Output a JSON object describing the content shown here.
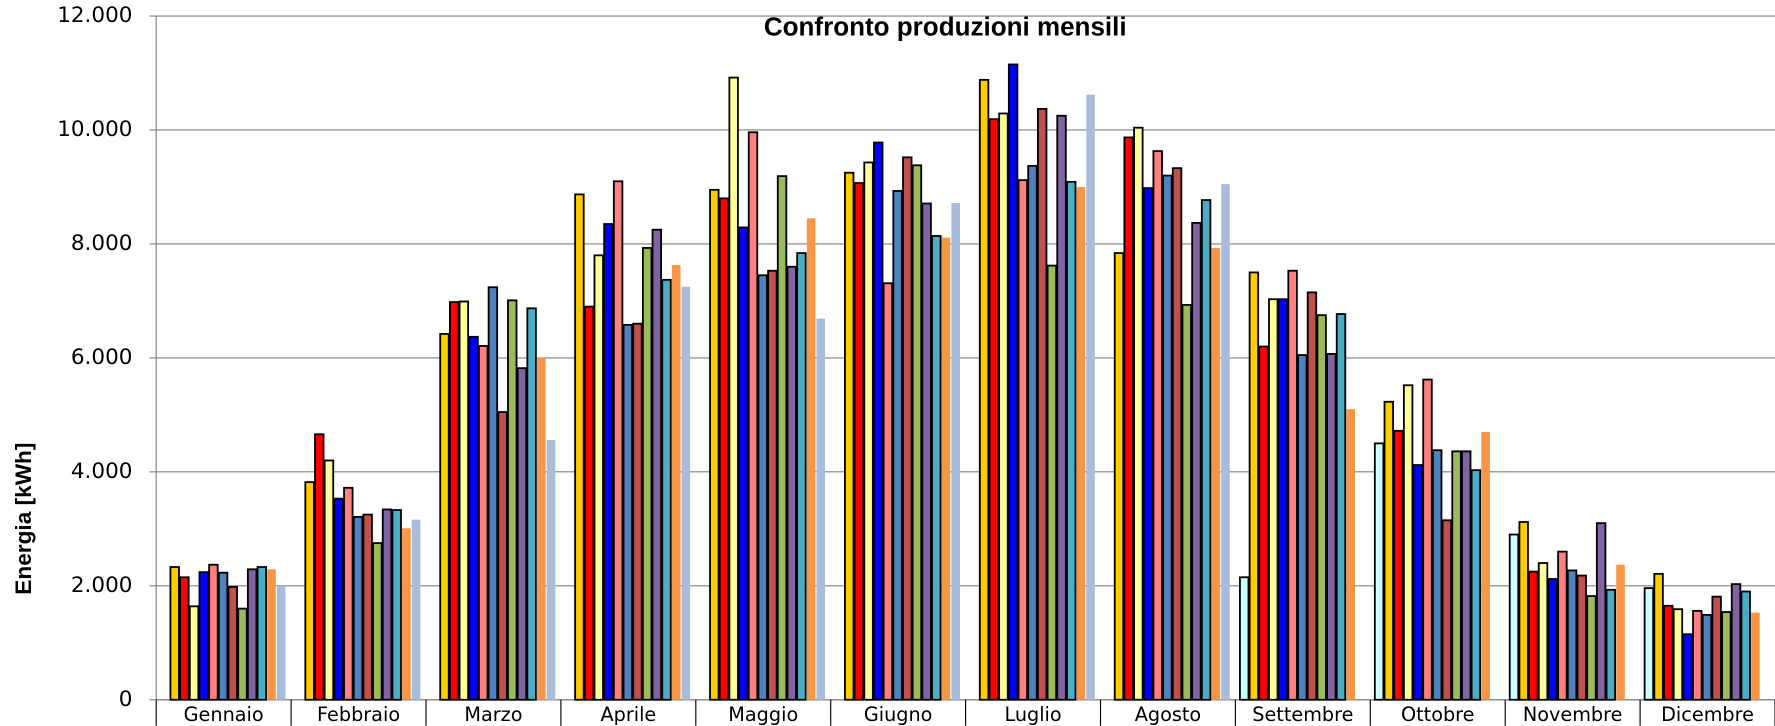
{
  "chart_data": {
    "type": "bar",
    "title": "Confronto produzioni mensili",
    "y_label": "Energia [kWh]",
    "categories": [
      "Gennaio",
      "Febbraio",
      "Marzo",
      "Aprile",
      "Maggio",
      "Giugno",
      "Luglio",
      "Agosto",
      "Settembre",
      "Ottobre",
      "Novembre",
      "Dicembre"
    ],
    "series": [
      {
        "color": "#ccffff",
        "edgecolor": "#000000",
        "values": [
          null,
          null,
          null,
          null,
          null,
          null,
          null,
          null,
          2150,
          4500,
          2900,
          1960
        ]
      },
      {
        "color": "#ffcc00",
        "edgecolor": "#000000",
        "values": [
          2330,
          3820,
          6420,
          8870,
          8950,
          9250,
          10880,
          7840,
          7500,
          5230,
          3120,
          2210
        ]
      },
      {
        "color": "#ff0000",
        "edgecolor": "#000000",
        "values": [
          2150,
          4660,
          6980,
          6900,
          8800,
          9070,
          10190,
          9870,
          6200,
          4720,
          2250,
          1650
        ]
      },
      {
        "color": "#ffff99",
        "edgecolor": "#000000",
        "values": [
          1640,
          4200,
          6990,
          7800,
          10920,
          9430,
          10290,
          10040,
          7030,
          5520,
          2400,
          1590
        ]
      },
      {
        "color": "#0000ff",
        "edgecolor": "#000000",
        "values": [
          2240,
          3530,
          6370,
          8350,
          8290,
          9780,
          11150,
          8980,
          7030,
          4120,
          2120,
          1150
        ]
      },
      {
        "color": "#ff8080",
        "edgecolor": "#000000",
        "values": [
          2370,
          3720,
          6210,
          9100,
          9960,
          7310,
          9120,
          9630,
          7530,
          5620,
          2600,
          1560
        ]
      },
      {
        "color": "#4f81bd",
        "edgecolor": "#000000",
        "values": [
          2230,
          3210,
          7240,
          6580,
          7450,
          8930,
          9370,
          9200,
          6050,
          4380,
          2270,
          1490
        ]
      },
      {
        "color": "#c0504d",
        "edgecolor": "#000000",
        "values": [
          1980,
          3250,
          5050,
          6600,
          7530,
          9520,
          10370,
          9330,
          7150,
          3150,
          2180,
          1810
        ]
      },
      {
        "color": "#9bbb59",
        "edgecolor": "#000000",
        "values": [
          1600,
          2750,
          7010,
          7930,
          9190,
          9380,
          7620,
          6930,
          6750,
          4360,
          1820,
          1540
        ]
      },
      {
        "color": "#8064a2",
        "edgecolor": "#000000",
        "values": [
          2290,
          3340,
          5820,
          8250,
          7600,
          8710,
          10250,
          8370,
          6070,
          4360,
          3100,
          2030
        ]
      },
      {
        "color": "#4bacc6",
        "edgecolor": "#000000",
        "values": [
          2330,
          3330,
          6870,
          7370,
          7840,
          8140,
          9090,
          8770,
          6770,
          4030,
          1930,
          1900
        ]
      },
      {
        "color": "#f79646",
        "edgecolor": null,
        "values": [
          2290,
          3010,
          6010,
          7630,
          8450,
          8110,
          9000,
          7930,
          5100,
          4700,
          2370,
          1530
        ]
      },
      {
        "color": "#a9bcdc",
        "edgecolor": null,
        "values": [
          2000,
          3160,
          4560,
          7250,
          6690,
          8720,
          10620,
          9050,
          null,
          null,
          null,
          null
        ]
      }
    ],
    "ylim": [
      0,
      12000
    ],
    "yticks": [
      0,
      {
        "value": 2000,
        "label": "2.000"
      },
      {
        "value": 4000,
        "label": "4.000"
      },
      {
        "value": 6000,
        "label": "6.000"
      },
      {
        "value": 8000,
        "label": "8.000"
      },
      {
        "value": 10000,
        "label": "10.000"
      },
      {
        "value": 12000,
        "label": "12.000"
      }
    ],
    "grid": true
  }
}
